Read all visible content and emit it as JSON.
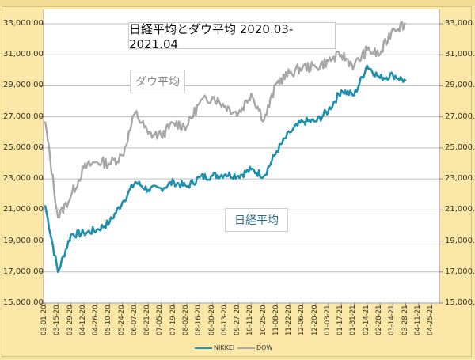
{
  "chart_data": {
    "type": "line",
    "title": "日経平均とダウ平均 2020.03-2021.04",
    "xlabel": "",
    "ylabel": "",
    "ylim": [
      15000,
      33000
    ],
    "yticks": [
      "33,000.00",
      "31,000.00",
      "29,000.00",
      "27,000.00",
      "25,000.00",
      "23,000.00",
      "21,000.00",
      "19,000.00",
      "17,000.00",
      "15,000.00"
    ],
    "yticks_right": [
      "33,000.",
      "31,000.",
      "29,000.",
      "27,000.",
      "25,000.",
      "23,000.",
      "21,000.",
      "19,000.",
      "17,000.",
      "15,000."
    ],
    "grid": true,
    "legend_position": "bottom",
    "x": [
      "03-01-20",
      "03-15-20",
      "03-29-20",
      "04-12-20",
      "04-26-20",
      "05-10-20",
      "05-24-20",
      "06-07-20",
      "06-21-20",
      "07-05-20",
      "07-19-20",
      "08-02-20",
      "08-16-20",
      "08-30-20",
      "09-13-20",
      "09-27-20",
      "10-11-20",
      "10-25-20",
      "11-08-20",
      "11-22-20",
      "12-06-20",
      "12-20-20",
      "01-03-21",
      "01-17-21",
      "01-31-21",
      "02-14-21",
      "02-28-21",
      "03-14-21",
      "03-28-21",
      "04-11-21",
      "04-25-21"
    ],
    "series": [
      {
        "name": "NIKKEI",
        "color": "#1f8fae",
        "label": "日経平均",
        "values": [
          21300,
          17000,
          19400,
          19500,
          19700,
          20200,
          21500,
          22800,
          22300,
          22400,
          22800,
          22500,
          23100,
          23200,
          23300,
          23200,
          23600,
          23200,
          24800,
          26000,
          26700,
          26700,
          27400,
          28700,
          28400,
          30300,
          29500,
          29700,
          29300,
          null,
          null
        ]
      },
      {
        "name": "DOW",
        "color": "#a7a7a7",
        "label": "ダウ平均",
        "values": [
          26700,
          20500,
          21900,
          23700,
          24100,
          24000,
          24500,
          27300,
          25900,
          25800,
          26600,
          26400,
          27900,
          28300,
          27700,
          27200,
          28500,
          26800,
          29200,
          29800,
          30200,
          30200,
          30600,
          31000,
          30300,
          31300,
          31000,
          32700,
          33000,
          null,
          null
        ]
      }
    ],
    "annotations": [
      "ダウ平均",
      "日経平均"
    ]
  },
  "chart": {
    "title": "日経平均とダウ平均 2020.03-2021.04",
    "dow_tag": "ダウ平均",
    "nikkei_tag": "日経平均",
    "legend": {
      "nikkei": "NIKKEI",
      "dow": "DOW"
    },
    "colors": {
      "nikkei": "#1f8fae",
      "dow": "#a7a7a7",
      "background": "#fbe7a8",
      "plot": "#ffffff",
      "grid": "#b8b8b8"
    }
  }
}
